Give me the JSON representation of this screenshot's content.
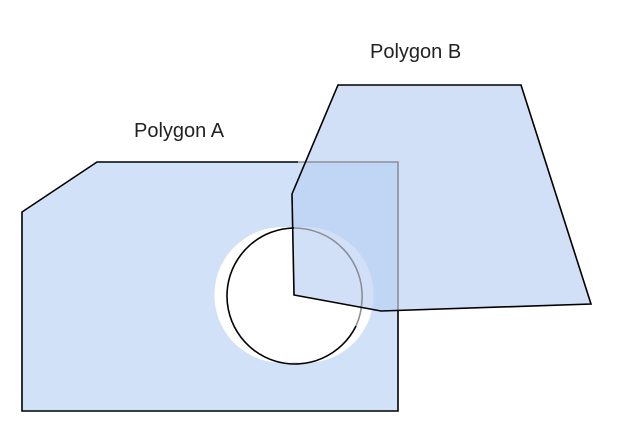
{
  "diagram": {
    "labels": {
      "polygon_a": "Polygon A",
      "polygon_b": "Polygon B"
    },
    "colors": {
      "fill": "#cfdff7",
      "stroke": "#000000",
      "background": "#ffffff"
    }
  }
}
